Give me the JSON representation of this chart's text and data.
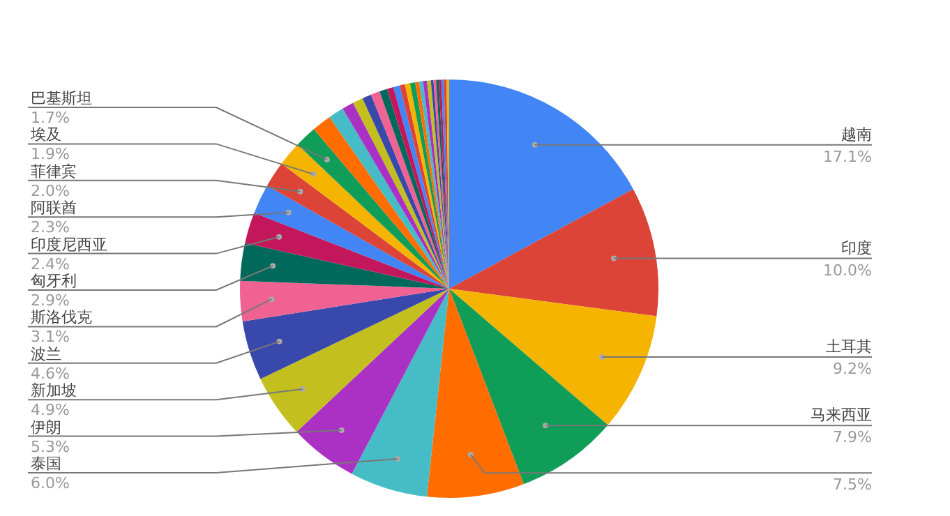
{
  "chart_data": {
    "type": "pie",
    "categories": [
      "越南",
      "印度",
      "土耳其",
      "马来西亚",
      null,
      "泰国",
      "伊朗",
      "新加坡",
      "波兰",
      "斯洛伐克",
      "匈牙利",
      "印度尼西亚",
      "阿联酋",
      "菲律宾",
      "埃及",
      "巴基斯坦",
      null,
      null,
      null,
      null,
      null,
      null,
      null,
      null,
      null,
      null,
      null,
      null,
      null,
      null,
      null,
      null,
      null,
      null,
      null,
      null,
      null,
      null,
      null
    ],
    "values": [
      17.1,
      10.0,
      9.2,
      7.9,
      7.5,
      6.0,
      5.3,
      4.9,
      4.6,
      3.1,
      2.9,
      2.4,
      2.3,
      2.0,
      1.9,
      1.7,
      1.5,
      1.2,
      0.9,
      0.8,
      0.7,
      0.7,
      0.6,
      0.5,
      0.5,
      0.4,
      0.4,
      0.4,
      0.3,
      0.3,
      0.3,
      0.3,
      0.2,
      0.2,
      0.2,
      0.2,
      0.2,
      0.2,
      0.2
    ],
    "value_labels": [
      "17.1%",
      "10.0%",
      "9.2%",
      "7.9%",
      "7.5%",
      "6.0%",
      "5.3%",
      "4.9%",
      "4.6%",
      "3.1%",
      "2.9%",
      "2.4%",
      "2.3%",
      "2.0%",
      "1.9%",
      "1.7%",
      null,
      null,
      null,
      null,
      null,
      null,
      null,
      null,
      null,
      null,
      null,
      null,
      null,
      null,
      null,
      null,
      null,
      null,
      null,
      null,
      null,
      null,
      null
    ],
    "colors": [
      "#4285f4",
      "#db4437",
      "#f4b400",
      "#0f9d58",
      "#ff6d00",
      "#46bdc6",
      "#ab30c4",
      "#c2bf1f",
      "#3949ab",
      "#f06292",
      "#00695c",
      "#c2185b",
      "#4285f4",
      "#db4437",
      "#f4b400",
      "#0f9d58",
      "#ff6d00",
      "#46bdc6",
      "#ab30c4",
      "#c2bf1f",
      "#3949ab",
      "#f06292",
      "#00695c",
      "#c2185b",
      "#4285f4",
      "#db4437",
      "#f4b400",
      "#0f9d58",
      "#ff6d00",
      "#46bdc6",
      "#ab30c4",
      "#c2bf1f",
      "#3949ab",
      "#f06292",
      "#00695c",
      "#c2185b",
      "#4285f4",
      "#db4437",
      "#f4b400"
    ],
    "legend": false
  }
}
